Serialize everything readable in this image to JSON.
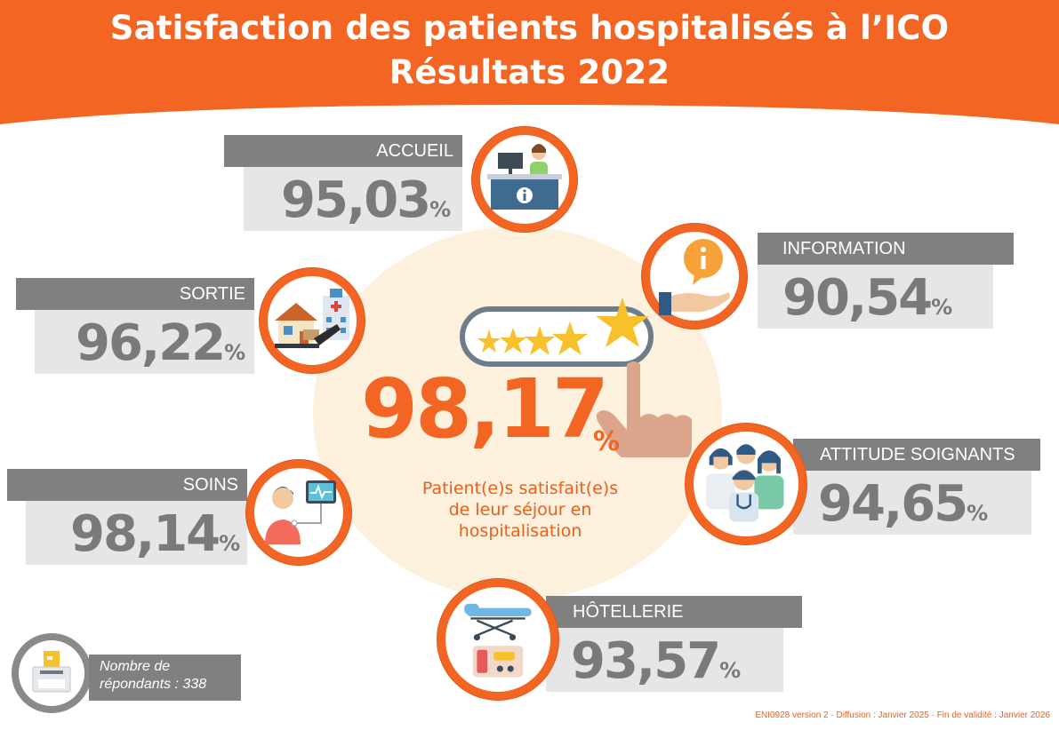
{
  "header": {
    "title_line1": "Satisfaction des patients hospitalisés à l’ICO",
    "title_line2": "Résultats 2022",
    "color": "#f26522"
  },
  "main": {
    "value": "98,17",
    "unit": "%",
    "caption_line1": "Patient(e)s satisfait(e)s",
    "caption_line2": "de leur séjour en",
    "caption_line3": "hospitalisation"
  },
  "categories": [
    {
      "label": "ACCUEIL",
      "value": "95,03",
      "unit": "%",
      "icon": "reception-desk-icon"
    },
    {
      "label": "INFORMATION",
      "value": "90,54",
      "unit": "%",
      "icon": "info-hand-icon"
    },
    {
      "label": "SORTIE",
      "value": "96,22",
      "unit": "%",
      "icon": "home-hospital-icon"
    },
    {
      "label": "ATTITUDE SOIGNANTS",
      "value": "94,65",
      "unit": "%",
      "icon": "caregivers-icon"
    },
    {
      "label": "SOINS",
      "value": "98,14",
      "unit": "%",
      "icon": "patient-monitor-icon"
    },
    {
      "label": "HÔTELLERIE",
      "value": "93,57",
      "unit": "%",
      "icon": "bed-tray-icon"
    }
  ],
  "respondents": {
    "line1": "Nombre de",
    "line2": "répondants : 338",
    "icon": "ballot-box-icon"
  },
  "footer": "ENI0928 version 2 · Diffusion : Janvier 2025 · Fin de validité : Janvier 2026",
  "colors": {
    "accent": "#f26522",
    "grey_label": "#808080",
    "grey_value_bg": "#e6e6e6",
    "value_text": "#7a7a7a"
  }
}
